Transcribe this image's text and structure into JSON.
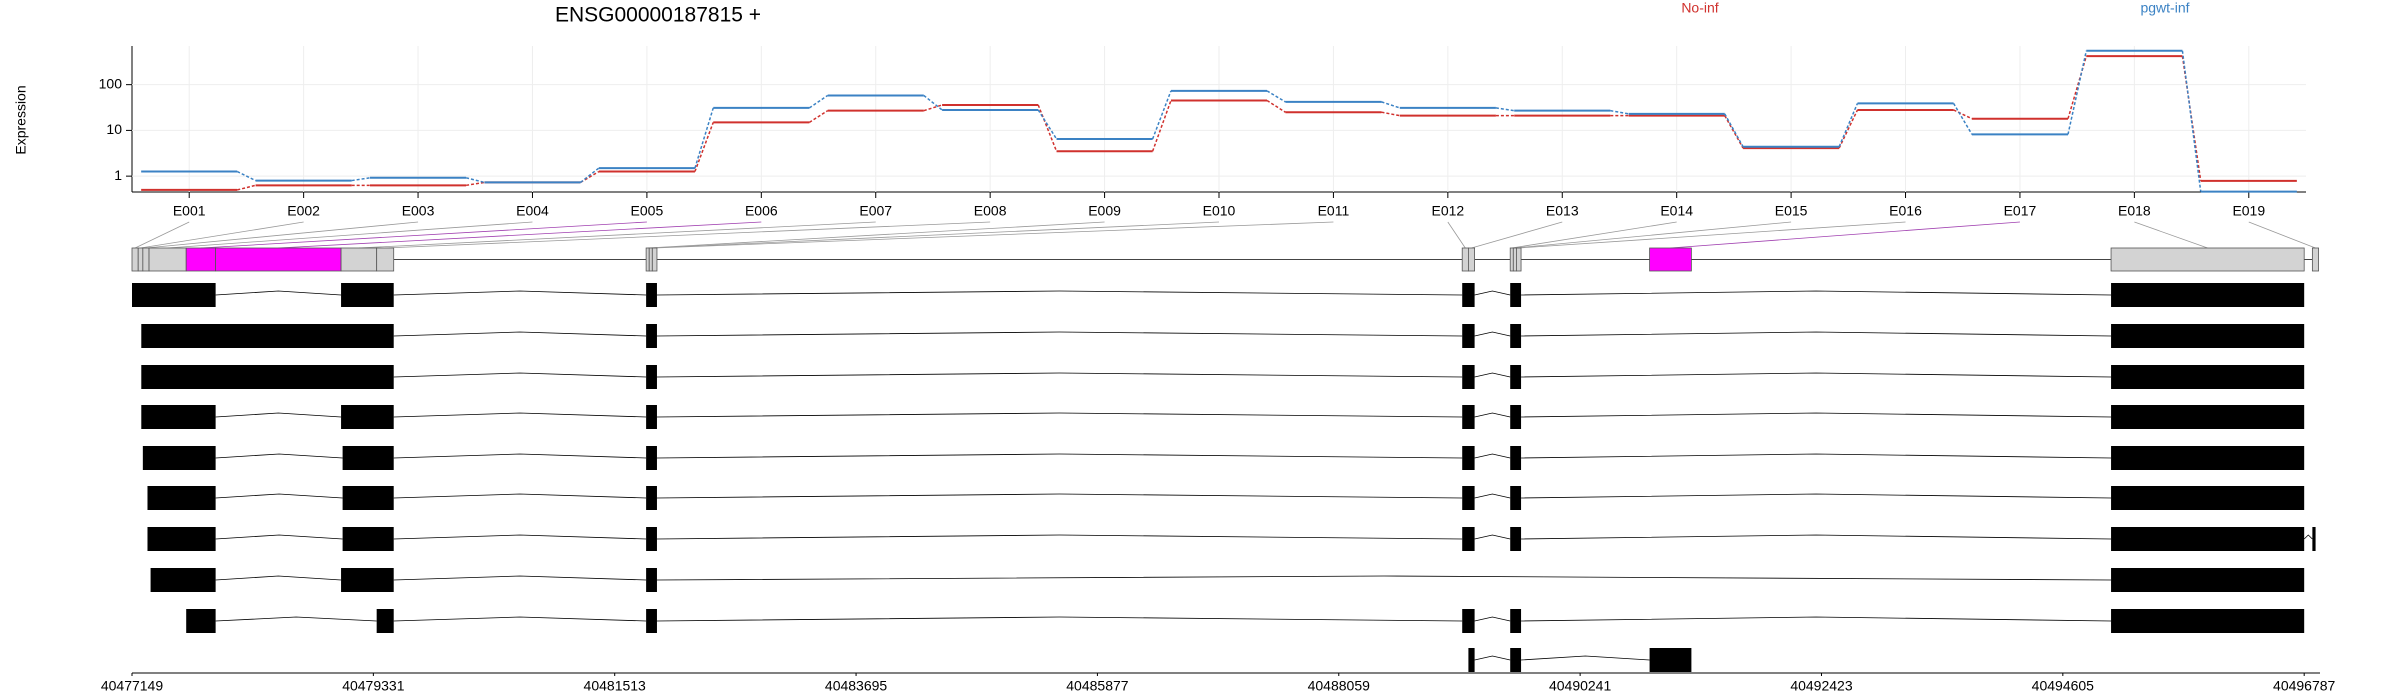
{
  "chart_data": {
    "type": "line",
    "title": "ENSG00000187815 +",
    "y_label": "Expression",
    "log_y": true,
    "grid": true,
    "legend": "top-right",
    "categories": [
      "E001",
      "E002",
      "E003",
      "E004",
      "E005",
      "E006",
      "E007",
      "E008",
      "E009",
      "E010",
      "E011",
      "E012",
      "E013",
      "E014",
      "E015",
      "E016",
      "E017",
      "E018",
      "E019"
    ],
    "series": [
      {
        "name": "No-inf",
        "color": "#d0312d",
        "values": [
          0.5,
          0.63,
          0.63,
          0.73,
          1.26,
          15,
          27,
          36,
          3.5,
          45,
          25,
          21,
          21,
          21,
          4.1,
          28,
          18,
          420,
          0.79
        ]
      },
      {
        "name": "pgwt-inf",
        "color": "#3b82c4",
        "values": [
          1.26,
          0.8,
          0.92,
          0.73,
          1.5,
          31,
          58,
          28,
          6.5,
          73,
          42,
          31,
          27,
          23,
          4.4,
          39,
          8.2,
          550,
          0.46
        ]
      }
    ],
    "ylim": [
      0.45,
      700
    ],
    "yticks": [
      1,
      10,
      100
    ],
    "xlim": [
      40477149,
      40496930
    ],
    "xticks": [
      40477149,
      40479331,
      40481513,
      40483695,
      40485877,
      40488059,
      40490241,
      40492423,
      40494605,
      40496787
    ],
    "gene_model": {
      "exons": [
        [
          40477149,
          40477205
        ],
        [
          40477205,
          40477247
        ],
        [
          40477247,
          40477303
        ],
        [
          40477303,
          40477639
        ],
        [
          40477639,
          40477905
        ],
        [
          40477905,
          40479039
        ],
        [
          40479039,
          40479361
        ],
        [
          40479361,
          40479515
        ],
        [
          40481797,
          40481825
        ],
        [
          40481825,
          40481853
        ],
        [
          40481853,
          40481895
        ],
        [
          40489175,
          40489231
        ],
        [
          40489231,
          40489287
        ],
        [
          40489609,
          40489637
        ],
        [
          40489637,
          40489665
        ],
        [
          40489665,
          40489707
        ],
        [
          40490869,
          40491247
        ],
        [
          40495041,
          40496787
        ],
        [
          40496861,
          40496917
        ]
      ],
      "exon_colors": [
        "#d3d3d3",
        "#d3d3d3",
        "#d3d3d3",
        "#d3d3d3",
        "#ff00ff",
        "#ff00ff",
        "#d3d3d3",
        "#d3d3d3",
        "#d3d3d3",
        "#d3d3d3",
        "#d3d3d3",
        "#d3d3d3",
        "#d3d3d3",
        "#d3d3d3",
        "#d3d3d3",
        "#d3d3d3",
        "#ff00ff",
        "#d3d3d3",
        "#d3d3d3"
      ]
    },
    "transcripts": [
      [
        [
          40477149,
          40477905
        ],
        [
          40479039,
          40479515
        ],
        [
          40481797,
          40481895
        ],
        [
          40489175,
          40489287
        ],
        [
          40489609,
          40489707
        ],
        [
          40495041,
          40496787
        ]
      ],
      [
        [
          40477233,
          40479515
        ],
        [
          40481797,
          40481895
        ],
        [
          40489175,
          40489287
        ],
        [
          40489609,
          40489707
        ],
        [
          40495041,
          40496787
        ]
      ],
      [
        [
          40477233,
          40479515
        ],
        [
          40481797,
          40481895
        ],
        [
          40489175,
          40489287
        ],
        [
          40489609,
          40489707
        ],
        [
          40495041,
          40496787
        ]
      ],
      [
        [
          40477233,
          40477905
        ],
        [
          40479039,
          40479515
        ],
        [
          40481797,
          40481895
        ],
        [
          40489175,
          40489287
        ],
        [
          40489609,
          40489707
        ],
        [
          40495041,
          40496787
        ]
      ],
      [
        [
          40477247,
          40477905
        ],
        [
          40479053,
          40479515
        ],
        [
          40481797,
          40481895
        ],
        [
          40489175,
          40489287
        ],
        [
          40489609,
          40489707
        ],
        [
          40495041,
          40496787
        ]
      ],
      [
        [
          40477289,
          40477905
        ],
        [
          40479053,
          40479515
        ],
        [
          40481797,
          40481895
        ],
        [
          40489175,
          40489287
        ],
        [
          40489609,
          40489707
        ],
        [
          40495041,
          40496787
        ]
      ],
      [
        [
          40477289,
          40477905
        ],
        [
          40479053,
          40479515
        ],
        [
          40481797,
          40481895
        ],
        [
          40489175,
          40489287
        ],
        [
          40489609,
          40489707
        ],
        [
          40495041,
          40496787
        ],
        [
          40496861,
          40496890
        ]
      ],
      [
        [
          40477317,
          40477905
        ],
        [
          40479039,
          40479515
        ],
        [
          40481797,
          40481895
        ],
        [
          40495041,
          40496787
        ]
      ],
      [
        [
          40477639,
          40477905
        ],
        [
          40479361,
          40479515
        ],
        [
          40481797,
          40481895
        ],
        [
          40489175,
          40489287
        ],
        [
          40489609,
          40489707
        ],
        [
          40495041,
          40496787
        ]
      ],
      [
        [
          40489231,
          40489287
        ],
        [
          40489609,
          40489707
        ],
        [
          40490869,
          40491247
        ]
      ]
    ]
  }
}
